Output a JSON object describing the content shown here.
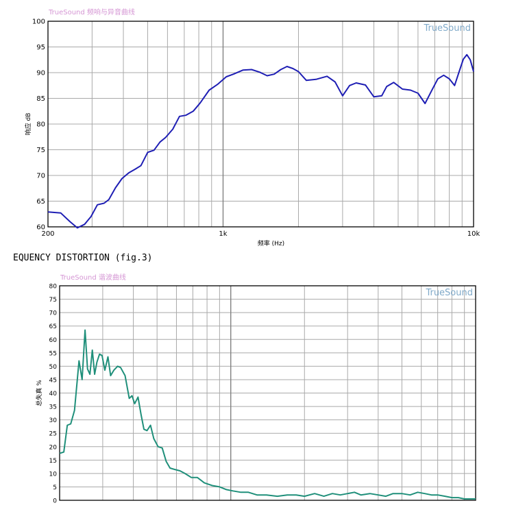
{
  "figure_caption": "EQUENCY DISTORTION  (fig.3)",
  "colors": {
    "grid": "#a9a9a9",
    "axis": "#000000",
    "chart1_line": "#1e1eb4",
    "chart2_line": "#1f8f7a",
    "watermark": "#7fa9c9",
    "title": "#d596d4"
  },
  "chart_data": [
    {
      "type": "line",
      "title": "TrueSound 频响与异音曲线",
      "watermark": "TrueSound",
      "xlabel": "频率 (Hz)",
      "ylabel": "响应 dB",
      "xscale": "log",
      "xlim": [
        200,
        10000
      ],
      "ylim": [
        60,
        100
      ],
      "x_ticks": [
        200,
        1000,
        10000
      ],
      "x_tick_labels": [
        "200",
        "1k",
        "10k"
      ],
      "y_ticks": [
        60,
        65,
        70,
        75,
        80,
        85,
        90,
        95,
        100
      ],
      "x_minor_grid": [
        300,
        400,
        500,
        600,
        700,
        800,
        900,
        2000,
        3000,
        4000,
        5000,
        6000,
        7000,
        8000,
        9000
      ],
      "grid": true,
      "series": [
        {
          "x": [
            200,
            225,
            245,
            262,
            280,
            297,
            315,
            335,
            350,
            372,
            395,
            420,
            445,
            470,
            500,
            530,
            560,
            590,
            630,
            670,
            710,
            760,
            810,
            880,
            950,
            1030,
            1100,
            1200,
            1300,
            1400,
            1500,
            1600,
            1700,
            1800,
            1900,
            2000,
            2150,
            2350,
            2600,
            2800,
            3000,
            3200,
            3400,
            3700,
            4000,
            4300,
            4500,
            4800,
            5200,
            5600,
            6000,
            6400,
            6800,
            7200,
            7600,
            8000,
            8400,
            8800,
            9100,
            9400,
            9700,
            10000
          ],
          "y": [
            62.9,
            62.7,
            61.0,
            59.8,
            60.5,
            62.0,
            64.3,
            64.6,
            65.3,
            67.6,
            69.4,
            70.5,
            71.2,
            71.9,
            74.5,
            74.9,
            76.5,
            77.4,
            79.0,
            81.5,
            81.7,
            82.5,
            84.1,
            86.6,
            87.7,
            89.2,
            89.7,
            90.5,
            90.6,
            90.1,
            89.4,
            89.7,
            90.6,
            91.2,
            90.8,
            90.2,
            88.5,
            88.7,
            89.3,
            88.2,
            85.5,
            87.5,
            88.0,
            87.6,
            85.3,
            85.5,
            87.3,
            88.1,
            86.8,
            86.6,
            86.0,
            84.0,
            86.5,
            88.8,
            89.5,
            88.8,
            87.5,
            90.5,
            92.6,
            93.5,
            92.5,
            90.2
          ]
        }
      ]
    },
    {
      "type": "line",
      "title": "TrueSound 谐波曲线",
      "watermark": "TrueSound",
      "xlabel": "",
      "ylabel": "总失真 %",
      "xscale": "log",
      "xlim": [
        200,
        10000
      ],
      "ylim": [
        0,
        80
      ],
      "y_ticks": [
        0,
        5,
        10,
        15,
        20,
        25,
        30,
        35,
        40,
        45,
        50,
        55,
        60,
        65,
        70,
        75,
        80
      ],
      "x_minor_grid": [
        300,
        400,
        500,
        600,
        700,
        800,
        900,
        2000,
        3000,
        4000,
        5000,
        6000,
        7000,
        8000,
        9000
      ],
      "grid": true,
      "series": [
        {
          "x": [
            200,
            208,
            215,
            222,
            230,
            240,
            247,
            254,
            260,
            266,
            272,
            278,
            284,
            291,
            298,
            306,
            315,
            323,
            333,
            345,
            355,
            370,
            385,
            395,
            405,
            418,
            430,
            442,
            455,
            470,
            485,
            505,
            525,
            545,
            565,
            590,
            620,
            650,
            690,
            730,
            780,
            840,
            900,
            960,
            1020,
            1100,
            1180,
            1280,
            1400,
            1550,
            1700,
            1850,
            2000,
            2200,
            2400,
            2600,
            2800,
            3000,
            3200,
            3400,
            3700,
            4000,
            4300,
            4600,
            5000,
            5400,
            5800,
            6200,
            6600,
            7000,
            7500,
            8000,
            8500,
            9000,
            9500,
            10000
          ],
          "y": [
            17.5,
            18.0,
            28.0,
            28.5,
            33.5,
            52.0,
            45.0,
            63.5,
            49.0,
            47.0,
            56.0,
            47.0,
            51.5,
            54.5,
            54.0,
            48.5,
            53.5,
            46.5,
            48.5,
            50.0,
            49.5,
            46.5,
            38.0,
            39.0,
            36.0,
            38.5,
            32.0,
            26.5,
            26.0,
            28.0,
            23.0,
            20.0,
            19.5,
            14.5,
            12.0,
            11.5,
            11.0,
            10.0,
            8.5,
            8.5,
            6.5,
            5.5,
            5.0,
            4.0,
            3.5,
            3.0,
            3.0,
            2.0,
            2.0,
            1.5,
            2.0,
            2.0,
            1.5,
            2.5,
            1.5,
            2.5,
            2.0,
            2.5,
            3.0,
            2.0,
            2.5,
            2.0,
            1.5,
            2.5,
            2.5,
            2.0,
            3.0,
            2.5,
            2.0,
            2.0,
            1.5,
            1.0,
            1.0,
            0.5,
            0.5,
            0.5
          ]
        }
      ]
    }
  ]
}
